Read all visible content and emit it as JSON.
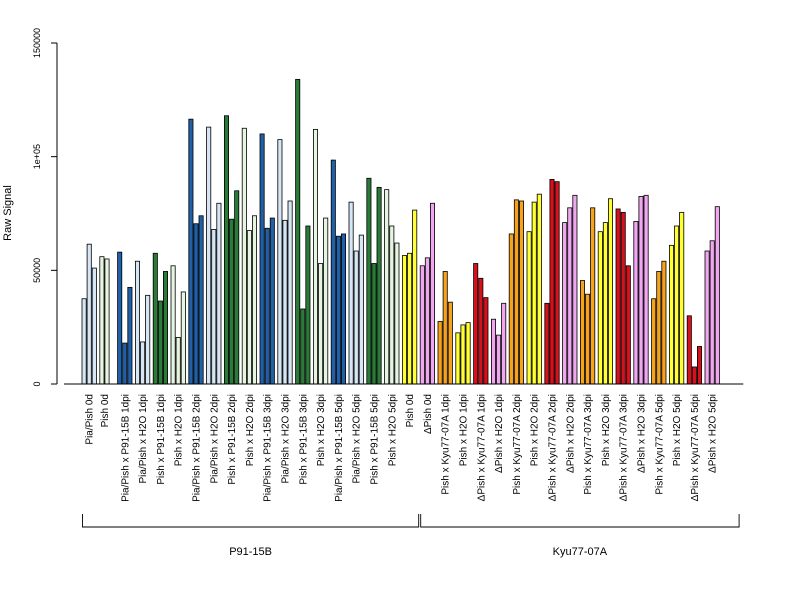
{
  "chart_data": {
    "type": "bar",
    "ylabel": "Raw Signal",
    "ylim": [
      0,
      150000
    ],
    "yticks": [
      {
        "value": 0,
        "label": "0"
      },
      {
        "value": 50000,
        "label": "50000"
      },
      {
        "value": 100000,
        "label": "1e+05"
      },
      {
        "value": 150000,
        "label": "150000"
      }
    ],
    "grid": false,
    "legend": "none",
    "colors": {
      "light_blue": "#d6e6f5",
      "dark_blue": "#2060a8",
      "light_green": "#e6f5e0",
      "dark_green": "#2a7a38",
      "yellow": "#ffff33",
      "violet": "#f0a6f0",
      "orange": "#f7a21b",
      "red": "#d7101c"
    },
    "groups": [
      {
        "name": "P91-15B",
        "first": 0,
        "last": 18
      },
      {
        "name": "Kyu77-07A",
        "first": 19,
        "last": 36
      }
    ],
    "categories": [
      {
        "label": "Pia/Pish 0d",
        "color": "light_blue",
        "values": [
          37500,
          61500,
          51000
        ]
      },
      {
        "label": "Pish 0d",
        "color": "light_green",
        "values": [
          56000,
          55000
        ]
      },
      {
        "label": "Pia/Pish x P91-15B 1dpi",
        "color": "dark_blue",
        "values": [
          58000,
          18000,
          42500
        ]
      },
      {
        "label": "Pia/Pish x H2O 1dpi",
        "color": "light_blue",
        "values": [
          54000,
          18500,
          39000
        ]
      },
      {
        "label": "Pish x P91-15B 1dpi",
        "color": "dark_green",
        "values": [
          57500,
          36500,
          49500
        ]
      },
      {
        "label": "Pish x H2O 1dpi",
        "color": "light_green",
        "values": [
          52000,
          20500,
          40500
        ]
      },
      {
        "label": "Pia/Pish x P91-15B 2dpi",
        "color": "dark_blue",
        "values": [
          116500,
          70500,
          74000
        ]
      },
      {
        "label": "Pia/Pish x H2O 2dpi",
        "color": "light_blue",
        "values": [
          113000,
          68000,
          79500
        ]
      },
      {
        "label": "Pish x P91-15B 2dpi",
        "color": "dark_green",
        "values": [
          118000,
          72500,
          85000
        ]
      },
      {
        "label": "Pish x H2O 2dpi",
        "color": "light_green",
        "values": [
          112500,
          67500,
          74000
        ]
      },
      {
        "label": "Pia/Pish x P91-15B 3dpi",
        "color": "dark_blue",
        "values": [
          110000,
          68500,
          73000
        ]
      },
      {
        "label": "Pia/Pish x H2O 3dpi",
        "color": "light_blue",
        "values": [
          107500,
          72000,
          80500
        ]
      },
      {
        "label": "Pish x P91-15B 3dpi",
        "color": "dark_green",
        "values": [
          134000,
          33000,
          69500
        ]
      },
      {
        "label": "Pish x H2O 3dpi",
        "color": "light_green",
        "values": [
          112000,
          53000,
          73000
        ]
      },
      {
        "label": "Pia/Pish x P91-15B 5dpi",
        "color": "dark_blue",
        "values": [
          98500,
          65000,
          66000
        ]
      },
      {
        "label": "Pia/Pish x H2O 5dpi",
        "color": "light_blue",
        "values": [
          80000,
          58500,
          65500
        ]
      },
      {
        "label": "Pish x P91-15B 5dpi",
        "color": "dark_green",
        "values": [
          90500,
          53000,
          86500
        ]
      },
      {
        "label": "Pish x H2O 5dpi",
        "color": "light_green",
        "values": [
          85500,
          69500,
          62000
        ]
      },
      {
        "label": "Pish 0d",
        "color": "yellow",
        "values": [
          56500,
          57500,
          76500
        ]
      },
      {
        "label": "ΔPish 0d",
        "color": "violet",
        "values": [
          52000,
          55500,
          79500
        ]
      },
      {
        "label": "Pish x Kyu77-07A 1dpi",
        "color": "orange",
        "values": [
          27500,
          49500,
          36000
        ]
      },
      {
        "label": "Pish x H2O 1dpi",
        "color": "yellow",
        "values": [
          22500,
          26000,
          27000
        ]
      },
      {
        "label": "ΔPish x Kyu77-07A 1dpi",
        "color": "red",
        "values": [
          53000,
          46500,
          38000
        ]
      },
      {
        "label": "ΔPish x H2O 1dpi",
        "color": "violet",
        "values": [
          28500,
          21500,
          35500
        ]
      },
      {
        "label": "Pish x Kyu77-07A 2dpi",
        "color": "orange",
        "values": [
          66000,
          81000,
          80500
        ]
      },
      {
        "label": "Pish x H2O 2dpi",
        "color": "yellow",
        "values": [
          67000,
          80000,
          83500
        ]
      },
      {
        "label": "ΔPish x Kyu77-07A 2dpi",
        "color": "red",
        "values": [
          35500,
          90000,
          89000
        ]
      },
      {
        "label": "ΔPish x H2O 2dpi",
        "color": "violet",
        "values": [
          71000,
          77500,
          83000
        ]
      },
      {
        "label": "Pish x Kyu77-07A 3dpi",
        "color": "orange",
        "values": [
          45500,
          39500,
          77500
        ]
      },
      {
        "label": "Pish x H2O 3dpi",
        "color": "yellow",
        "values": [
          67000,
          71000,
          81500
        ]
      },
      {
        "label": "ΔPish x Kyu77-07A 3dpi",
        "color": "red",
        "values": [
          77000,
          75500,
          52000
        ]
      },
      {
        "label": "ΔPish x H2O 3dpi",
        "color": "violet",
        "values": [
          71500,
          82500,
          83000
        ]
      },
      {
        "label": "Pish x Kyu77-07A 5dpi",
        "color": "orange",
        "values": [
          37500,
          49500,
          54000
        ]
      },
      {
        "label": "Pish x H2O 5dpi",
        "color": "yellow",
        "values": [
          61000,
          69500,
          75500
        ]
      },
      {
        "label": "ΔPish x Kyu77-07A 5dpi",
        "color": "red",
        "values": [
          30000,
          7500,
          16500
        ]
      },
      {
        "label": "ΔPish x H2O 5dpi",
        "color": "violet",
        "values": [
          58500,
          63000,
          78000
        ]
      }
    ]
  }
}
